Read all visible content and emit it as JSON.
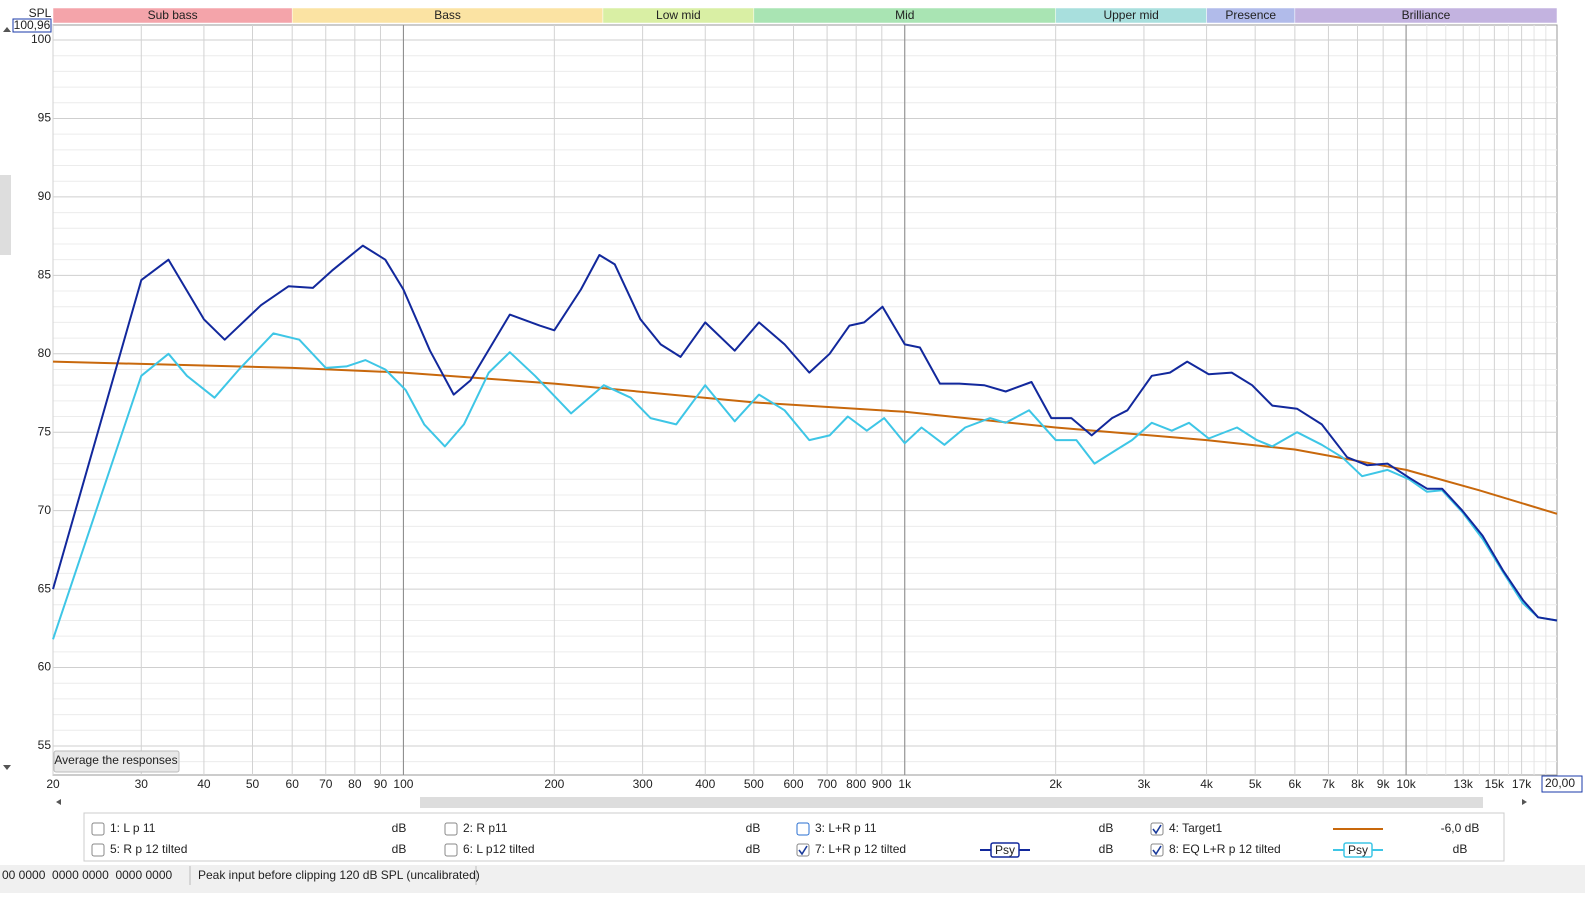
{
  "ui": {
    "spl_label": "SPL",
    "cursor_y": "100,96",
    "cursor_x": "20,00",
    "button": "Average the responses",
    "status_left": "00 0000  0000 0000  0000 0000",
    "status_right": "Peak input before clipping 120 dB SPL (uncalibrated)",
    "traces": [
      {
        "name": "1: L p 11",
        "color": "#d8343c",
        "checked": false,
        "level": "dB"
      },
      {
        "name": "2: R p11",
        "color": "#2ea83a",
        "checked": false,
        "level": "dB"
      },
      {
        "name": "3: L+R p 11",
        "color": "#3c82d2",
        "checked": false,
        "level": "dB"
      },
      {
        "name": "5: R p 12 tilted",
        "color": "#8a1a60",
        "checked": false,
        "level": "dB"
      },
      {
        "name": "6: L p12 tilted",
        "color": "#2f6030",
        "checked": false,
        "level": "dB"
      }
    ]
  },
  "chart_data": {
    "type": "line",
    "xscale": "log",
    "xlim": [
      20,
      20000
    ],
    "ylim": [
      53.15,
      100.96
    ],
    "grid": true,
    "bands": [
      {
        "label": "Sub bass",
        "from": 20,
        "to": 60,
        "color": "#f4a4aa"
      },
      {
        "label": "Bass",
        "from": 60,
        "to": 250,
        "color": "#fbe3a3"
      },
      {
        "label": "Low mid",
        "from": 250,
        "to": 500,
        "color": "#d9efa4"
      },
      {
        "label": "Mid",
        "from": 500,
        "to": 2000,
        "color": "#a9e4b3"
      },
      {
        "label": "Upper mid",
        "from": 2000,
        "to": 4000,
        "color": "#a8dfdd"
      },
      {
        "label": "Presence",
        "from": 4000,
        "to": 6000,
        "color": "#b1bbea"
      },
      {
        "label": "Brilliance",
        "from": 6000,
        "to": 20000,
        "color": "#c3b3e0"
      }
    ],
    "xticks": [
      20,
      30,
      40,
      50,
      60,
      70,
      80,
      90,
      100,
      200,
      300,
      400,
      500,
      600,
      700,
      800,
      900,
      {
        "value": 1000,
        "label": "1k"
      },
      {
        "value": 2000,
        "label": "2k"
      },
      {
        "value": 3000,
        "label": "3k"
      },
      {
        "value": 4000,
        "label": "4k"
      },
      {
        "value": 5000,
        "label": "5k"
      },
      {
        "value": 6000,
        "label": "6k"
      },
      {
        "value": 7000,
        "label": "7k"
      },
      {
        "value": 8000,
        "label": "8k"
      },
      {
        "value": 9000,
        "label": "9k"
      },
      {
        "value": 10000,
        "label": "10k"
      },
      {
        "value": 13000,
        "label": "13k"
      },
      {
        "value": 15000,
        "label": "15k"
      },
      {
        "value": 17000,
        "label": "17k"
      }
    ],
    "xmajor": [
      100,
      1000,
      10000
    ],
    "xminor": [
      11000,
      12000,
      14000,
      16000,
      18000,
      19000
    ],
    "yticks": [
      55,
      60,
      65,
      70,
      75,
      80,
      85,
      90,
      95,
      100
    ],
    "yminor": [
      54,
      56,
      57,
      58,
      59,
      61,
      62,
      63,
      64,
      66,
      67,
      68,
      69,
      71,
      72,
      73,
      74,
      76,
      77,
      78,
      79,
      81,
      82,
      83,
      84,
      86,
      87,
      88,
      89,
      91,
      92,
      93,
      94,
      96,
      97,
      98,
      99
    ],
    "series": [
      {
        "name": "7: L+R p 12 tilted",
        "color": "#12289c",
        "checked": true,
        "level": "dB",
        "smoothing": "Psy",
        "x": [
          20,
          30,
          34,
          40,
          44,
          52,
          59,
          66,
          72,
          83,
          92,
          100,
          113,
          126,
          136,
          163,
          187,
          200,
          226,
          246,
          264,
          297,
          326,
          357,
          400,
          458,
          512,
          576,
          645,
          708,
          776,
          830,
          903,
          1000,
          1072,
          1175,
          1285,
          1440,
          1590,
          1790,
          1960,
          2150,
          2360,
          2590,
          2780,
          3110,
          3380,
          3660,
          4040,
          4490,
          4930,
          5410,
          6060,
          6790,
          7630,
          8360,
          9180,
          10140,
          11010,
          11800,
          12950,
          14210,
          15600,
          17100,
          18340,
          20000
        ],
        "values": [
          65.0,
          84.7,
          86.0,
          82.2,
          80.9,
          83.1,
          84.3,
          84.2,
          85.3,
          86.9,
          86.0,
          84.1,
          80.2,
          77.4,
          78.3,
          82.5,
          81.8,
          81.5,
          84.1,
          86.3,
          85.7,
          82.2,
          80.6,
          79.8,
          82.0,
          80.2,
          82.0,
          80.6,
          78.8,
          80.0,
          81.8,
          82.0,
          83.0,
          80.6,
          80.4,
          78.1,
          78.1,
          78.0,
          77.6,
          78.2,
          75.9,
          75.9,
          74.8,
          75.9,
          76.4,
          78.6,
          78.8,
          79.5,
          78.7,
          78.8,
          78.0,
          76.7,
          76.5,
          75.5,
          73.4,
          72.9,
          73.0,
          72.1,
          71.4,
          71.4,
          70.0,
          68.4,
          66.2,
          64.3,
          63.2,
          63.0
        ]
      },
      {
        "name": "8: EQ L+R p 12 tilted",
        "color": "#3ec6e6",
        "checked": true,
        "level": "dB",
        "smoothing": "Psy",
        "x": [
          20,
          30,
          34,
          37,
          42,
          47,
          55,
          62,
          70,
          77,
          84,
          92,
          101,
          110,
          121,
          132,
          148,
          163,
          183,
          216,
          251,
          284,
          311,
          350,
          400,
          458,
          512,
          576,
          645,
          708,
          770,
          840,
          910,
          1000,
          1080,
          1200,
          1320,
          1480,
          1590,
          1770,
          2000,
          2200,
          2390,
          2650,
          2840,
          3110,
          3410,
          3690,
          4040,
          4600,
          5040,
          5410,
          6060,
          6790,
          7460,
          8170,
          9180,
          10140,
          11010,
          11800,
          12950,
          14210,
          15600,
          17100,
          18340,
          20000
        ],
        "values": [
          61.8,
          78.6,
          80.0,
          78.6,
          77.2,
          79.0,
          81.3,
          80.9,
          79.1,
          79.2,
          79.6,
          79.0,
          77.7,
          75.5,
          74.1,
          75.5,
          78.8,
          80.1,
          78.6,
          76.2,
          78.0,
          77.2,
          75.9,
          75.5,
          78.0,
          75.7,
          77.4,
          76.4,
          74.5,
          74.8,
          76.0,
          75.1,
          75.9,
          74.3,
          75.3,
          74.2,
          75.3,
          75.9,
          75.6,
          76.4,
          74.5,
          74.5,
          73.0,
          73.9,
          74.5,
          75.6,
          75.1,
          75.6,
          74.6,
          75.3,
          74.5,
          74.1,
          75.0,
          74.2,
          73.4,
          72.2,
          72.6,
          72.0,
          71.2,
          71.3,
          69.9,
          68.2,
          66.1,
          64.1,
          63.2,
          63.0
        ]
      },
      {
        "name": "4: Target1",
        "color": "#c8680c",
        "checked": true,
        "level": "-6,0 dB",
        "x": [
          20,
          60,
          100,
          200,
          500,
          1000,
          2000,
          4000,
          6000,
          10000,
          14000,
          20000
        ],
        "values": [
          79.5,
          79.1,
          78.8,
          78.1,
          76.9,
          76.3,
          75.3,
          74.5,
          73.9,
          72.6,
          71.3,
          69.8
        ]
      }
    ]
  }
}
